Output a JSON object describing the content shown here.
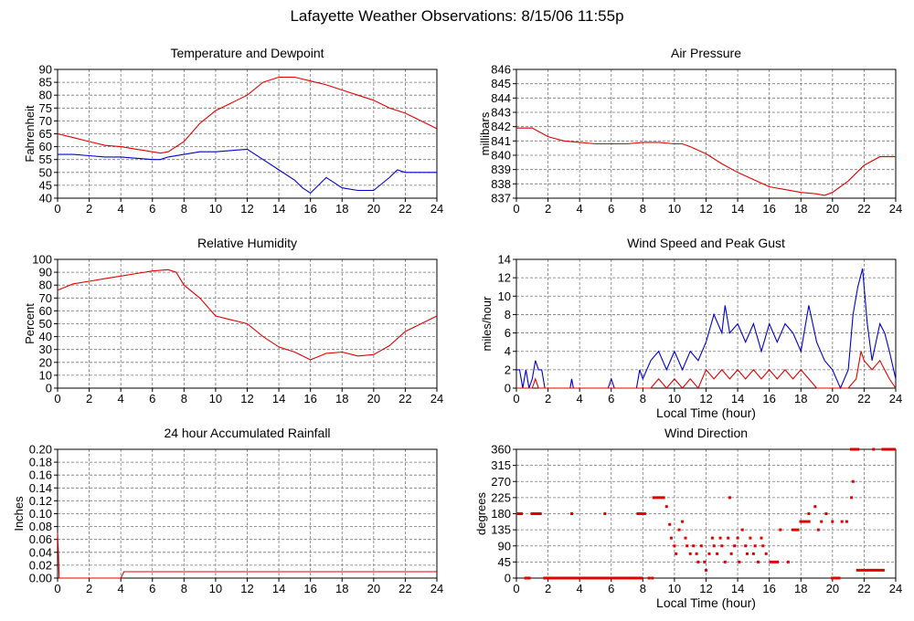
{
  "title": "Lafayette Weather Observations: 8/15/06 11:55p",
  "colors": {
    "red": "#e00000",
    "blue": "#0000cc",
    "grid": "#777777",
    "axis": "#000000"
  },
  "chart_data": [
    {
      "id": "temp",
      "type": "line",
      "title": "Temperature and Dewpoint",
      "xlabel": "",
      "ylabel": "Fahrenheit",
      "xlim": [
        0,
        24
      ],
      "ylim": [
        40,
        90
      ],
      "xticks": [
        0,
        2,
        4,
        6,
        8,
        10,
        12,
        14,
        16,
        18,
        20,
        22,
        24
      ],
      "yticks": [
        40,
        45,
        50,
        55,
        60,
        65,
        70,
        75,
        80,
        85,
        90
      ],
      "grid": true,
      "series": [
        {
          "color": "#e00000",
          "x": [
            0,
            1,
            2,
            3,
            4,
            5,
            6,
            6.5,
            7,
            8,
            9,
            10,
            11,
            12,
            13,
            14,
            15,
            16,
            17,
            18,
            19,
            20,
            21,
            22,
            23,
            24
          ],
          "y": [
            65,
            63.5,
            62,
            60.5,
            60,
            59,
            58,
            57.5,
            58,
            62,
            69,
            74,
            77,
            80,
            85,
            87,
            87,
            85.5,
            84,
            82,
            80,
            78,
            75,
            73,
            70,
            67
          ]
        },
        {
          "color": "#0000cc",
          "x": [
            0,
            1,
            2,
            3,
            4,
            5,
            6,
            6.5,
            7,
            8,
            9,
            10,
            11,
            12,
            12.5,
            13,
            14,
            15,
            15.5,
            16,
            16.5,
            17,
            18,
            19,
            20,
            21,
            21.5,
            22,
            23,
            24
          ],
          "y": [
            57,
            57,
            56.5,
            56,
            56,
            55.5,
            55,
            55,
            56,
            57,
            58,
            58,
            58.5,
            59,
            57,
            55,
            51,
            47,
            44,
            42,
            45,
            48,
            44,
            43,
            43,
            48,
            51,
            50,
            50,
            50
          ]
        }
      ]
    },
    {
      "id": "pressure",
      "type": "line",
      "title": "Air Pressure",
      "xlabel": "",
      "ylabel": "millibars",
      "xlim": [
        0,
        24
      ],
      "ylim": [
        837,
        846
      ],
      "xticks": [
        0,
        2,
        4,
        6,
        8,
        10,
        12,
        14,
        16,
        18,
        20,
        22,
        24
      ],
      "yticks": [
        837,
        838,
        839,
        840,
        841,
        842,
        843,
        844,
        845,
        846
      ],
      "grid": true,
      "series": [
        {
          "color": "#e00000",
          "x": [
            0,
            1,
            1.5,
            2,
            3,
            4,
            5,
            6,
            7,
            8,
            9,
            10,
            10.5,
            11,
            12,
            13,
            14,
            15,
            16,
            17,
            18,
            19,
            19.5,
            20,
            21,
            22,
            23,
            24
          ],
          "y": [
            841.9,
            841.9,
            841.6,
            841.3,
            841.0,
            840.9,
            840.8,
            840.8,
            840.8,
            840.9,
            840.9,
            840.8,
            840.8,
            840.6,
            840.1,
            839.4,
            838.8,
            838.3,
            837.8,
            837.6,
            837.4,
            837.3,
            837.2,
            837.4,
            838.2,
            839.3,
            839.9,
            839.9
          ]
        }
      ]
    },
    {
      "id": "humidity",
      "type": "line",
      "title": "Relative Humidity",
      "xlabel": "",
      "ylabel": "Percent",
      "xlim": [
        0,
        24
      ],
      "ylim": [
        0,
        100
      ],
      "xticks": [
        0,
        2,
        4,
        6,
        8,
        10,
        12,
        14,
        16,
        18,
        20,
        22,
        24
      ],
      "yticks": [
        0,
        10,
        20,
        30,
        40,
        50,
        60,
        70,
        80,
        90,
        100
      ],
      "grid": true,
      "series": [
        {
          "color": "#e00000",
          "x": [
            0,
            1,
            2,
            3,
            4,
            5,
            6,
            7,
            7.5,
            8,
            9,
            10,
            11,
            12,
            13,
            14,
            15,
            16,
            17,
            18,
            19,
            20,
            21,
            22,
            23,
            24
          ],
          "y": [
            76,
            81,
            83,
            85,
            87,
            89,
            91,
            92,
            90,
            80,
            70,
            56,
            53,
            50,
            40,
            32,
            28,
            22,
            27,
            28,
            25,
            26,
            33,
            44,
            50,
            56
          ]
        }
      ]
    },
    {
      "id": "wind",
      "type": "line",
      "title": "Wind Speed and Peak Gust",
      "xlabel": "Local Time (hour)",
      "ylabel": "miles/hour",
      "xlim": [
        0,
        24
      ],
      "ylim": [
        0,
        14
      ],
      "xticks": [
        0,
        2,
        4,
        6,
        8,
        10,
        12,
        14,
        16,
        18,
        20,
        22,
        24
      ],
      "yticks": [
        0,
        2,
        4,
        6,
        8,
        10,
        12,
        14
      ],
      "grid": true,
      "series": [
        {
          "color": "#0000cc",
          "x": [
            0,
            0.2,
            0.4,
            0.6,
            0.8,
            1.0,
            1.2,
            1.4,
            1.6,
            1.8,
            2,
            3.4,
            3.5,
            3.6,
            5.8,
            6,
            6.2,
            7.6,
            7.8,
            8,
            8.5,
            9,
            9.5,
            10,
            10.5,
            11,
            11.5,
            12,
            12.5,
            13,
            13.2,
            13.5,
            14,
            14.5,
            15,
            15.5,
            16,
            16.5,
            17,
            17.5,
            18,
            18.5,
            19,
            19.5,
            20,
            20.5,
            21,
            21.3,
            21.6,
            21.9,
            22.2,
            22.5,
            23,
            23.3,
            23.6,
            24
          ],
          "y": [
            2,
            2,
            0,
            2,
            0,
            1,
            3,
            2,
            2,
            0,
            0,
            0,
            1,
            0,
            0,
            1,
            0,
            0,
            2,
            1,
            3,
            4,
            2,
            4,
            2,
            4,
            3,
            5,
            8,
            6,
            9,
            6,
            7,
            5,
            7,
            4,
            7,
            5,
            7,
            6,
            4,
            9,
            5,
            3,
            2,
            0,
            2,
            8,
            11,
            13,
            7,
            3,
            7,
            6,
            4,
            1
          ]
        },
        {
          "color": "#e00000",
          "x": [
            0,
            1,
            1.2,
            1.4,
            2,
            8.5,
            9,
            9.5,
            10,
            10.5,
            11,
            11.5,
            12,
            12.5,
            13,
            13.5,
            14,
            14.5,
            15,
            15.5,
            16,
            16.5,
            17,
            17.5,
            18,
            18.5,
            19,
            20,
            21,
            21.5,
            21.8,
            22,
            22.5,
            23,
            23.3,
            23.6,
            24
          ],
          "y": [
            0,
            0,
            1,
            0,
            0,
            0,
            1,
            0,
            1,
            0,
            1,
            0,
            2,
            1,
            2,
            1,
            2,
            1,
            2,
            1,
            2,
            1,
            2,
            1,
            2,
            1,
            0,
            0,
            0,
            1,
            4,
            3,
            2,
            3,
            2,
            1,
            0
          ]
        }
      ]
    },
    {
      "id": "rain",
      "type": "line",
      "title": "24 hour Accumulated Rainfall",
      "xlabel": "",
      "ylabel": "Inches",
      "xlim": [
        0,
        24
      ],
      "ylim": [
        0,
        0.2
      ],
      "xticks": [
        0,
        2,
        4,
        6,
        8,
        10,
        12,
        14,
        16,
        18,
        20,
        22,
        24
      ],
      "yticks": [
        0.0,
        0.02,
        0.04,
        0.06,
        0.08,
        0.1,
        0.12,
        0.14,
        0.16,
        0.18,
        0.2
      ],
      "grid": true,
      "series": [
        {
          "color": "#e00000",
          "x": [
            0,
            0.05,
            0.1,
            4.0,
            4.2,
            24
          ],
          "y": [
            0.07,
            0.04,
            0.0,
            0.0,
            0.01,
            0.01
          ]
        }
      ]
    },
    {
      "id": "dir",
      "type": "scatter",
      "title": "Wind Direction",
      "xlabel": "Local Time (hour)",
      "ylabel": "degrees",
      "xlim": [
        0,
        24
      ],
      "ylim": [
        0,
        360
      ],
      "xticks": [
        0,
        2,
        4,
        6,
        8,
        10,
        12,
        14,
        16,
        18,
        20,
        22,
        24
      ],
      "yticks": [
        0,
        45,
        90,
        135,
        180,
        225,
        270,
        315,
        360
      ],
      "grid": true,
      "segments": [
        {
          "x0": 0,
          "x1": 0.4,
          "y": 180
        },
        {
          "x0": 0.5,
          "x1": 0.9,
          "y": 0
        },
        {
          "x0": 0.9,
          "x1": 1.6,
          "y": 180
        },
        {
          "x0": 1.7,
          "x1": 8.0,
          "y": 0
        },
        {
          "x0": 7.6,
          "x1": 8.2,
          "y": 180
        },
        {
          "x0": 8.6,
          "x1": 9.4,
          "y": 225
        },
        {
          "x0": 16.0,
          "x1": 16.6,
          "y": 45
        },
        {
          "x0": 17.4,
          "x1": 17.9,
          "y": 135
        },
        {
          "x0": 17.9,
          "x1": 18.6,
          "y": 158
        },
        {
          "x0": 19.9,
          "x1": 20.5,
          "y": 0
        },
        {
          "x0": 21.1,
          "x1": 21.7,
          "y": 360
        },
        {
          "x0": 21.5,
          "x1": 23.3,
          "y": 22
        },
        {
          "x0": 23.1,
          "x1": 24,
          "y": 360
        }
      ],
      "points": [
        [
          3.5,
          180
        ],
        [
          5.6,
          180
        ],
        [
          8.4,
          0
        ],
        [
          8.6,
          0
        ],
        [
          9.5,
          200
        ],
        [
          9.7,
          150
        ],
        [
          9.8,
          112
        ],
        [
          10.0,
          90
        ],
        [
          10.1,
          68
        ],
        [
          10.3,
          135
        ],
        [
          10.5,
          158
        ],
        [
          10.7,
          112
        ],
        [
          10.8,
          90
        ],
        [
          11.0,
          68
        ],
        [
          11.2,
          90
        ],
        [
          11.4,
          68
        ],
        [
          11.5,
          45
        ],
        [
          11.7,
          90
        ],
        [
          11.9,
          45
        ],
        [
          12.0,
          22
        ],
        [
          12.2,
          68
        ],
        [
          12.4,
          112
        ],
        [
          12.5,
          90
        ],
        [
          12.7,
          68
        ],
        [
          12.9,
          112
        ],
        [
          13.0,
          90
        ],
        [
          13.2,
          45
        ],
        [
          13.4,
          112
        ],
        [
          13.5,
          225
        ],
        [
          13.6,
          68
        ],
        [
          13.8,
          90
        ],
        [
          14.0,
          112
        ],
        [
          14.1,
          45
        ],
        [
          14.3,
          135
        ],
        [
          14.5,
          90
        ],
        [
          14.6,
          68
        ],
        [
          14.8,
          112
        ],
        [
          15.0,
          68
        ],
        [
          15.1,
          90
        ],
        [
          15.3,
          45
        ],
        [
          15.5,
          112
        ],
        [
          15.6,
          90
        ],
        [
          15.8,
          68
        ],
        [
          16.7,
          135
        ],
        [
          17.2,
          45
        ],
        [
          18.5,
          180
        ],
        [
          18.9,
          200
        ],
        [
          19.1,
          135
        ],
        [
          19.3,
          158
        ],
        [
          19.6,
          180
        ],
        [
          20.0,
          158
        ],
        [
          20.6,
          158
        ],
        [
          20.9,
          158
        ],
        [
          21.2,
          225
        ],
        [
          21.3,
          270
        ],
        [
          22.6,
          360
        ]
      ]
    }
  ]
}
